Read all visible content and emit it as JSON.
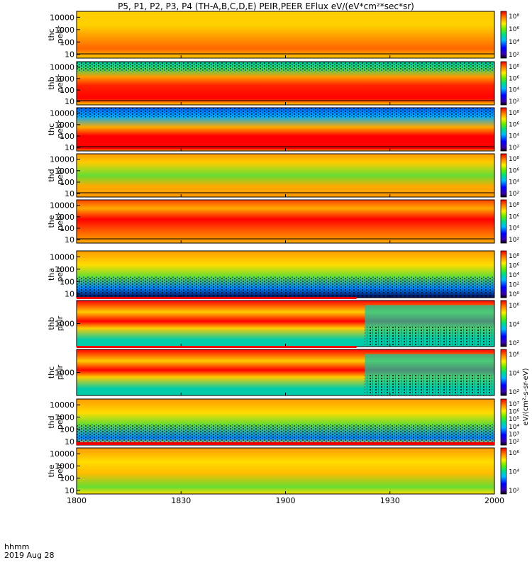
{
  "title": "P5, P1, P2, P3, P4 (TH-A,B,C,D,E) PEIR,PEER EFlux eV/(eV*cm²*sec*sr)",
  "footer": {
    "label_line1": "hhmm",
    "label_line2": "2019 Aug 28"
  },
  "colorbar_label": "eV/(cm²-s-sr-eV)",
  "chart_data": [
    {
      "type": "heatmap",
      "probe_label": "thc",
      "product_label": "peer",
      "ylabel": "thc peer",
      "yticks": [
        "10",
        "100",
        "1000",
        "10000"
      ],
      "yscale": "log",
      "ylim": [
        5,
        30000
      ],
      "xticks": [
        "1800",
        "1830",
        "1900",
        "1930",
        "2000"
      ],
      "colorbar_ticks": [
        "10⁸",
        "10⁶",
        "10⁴",
        "10²"
      ],
      "dominant_colors": [
        "#ffd000",
        "#ff8800",
        "#ff2000"
      ],
      "fill_levels": {
        "band_top": 0.55,
        "band_mid": 0.35
      }
    },
    {
      "type": "heatmap",
      "probe_label": "thb",
      "product_label": "peer",
      "ylabel": "thb peer",
      "yticks": [
        "10",
        "100",
        "1000",
        "10000"
      ],
      "yscale": "log",
      "ylim": [
        5,
        30000
      ],
      "xticks": [
        "1800",
        "1830",
        "1900",
        "1930",
        "2000"
      ],
      "colorbar_ticks": [
        "10⁸",
        "10⁶",
        "10⁴",
        "10²"
      ],
      "dominant_colors": [
        "#ff0000",
        "#ff9900",
        "#00cc99"
      ]
    },
    {
      "type": "heatmap",
      "probe_label": "thc",
      "product_label": "peer",
      "ylabel": "thc peer",
      "yticks": [
        "10",
        "100",
        "1000",
        "10000"
      ],
      "yscale": "log",
      "ylim": [
        5,
        30000
      ],
      "xticks": [
        "1800",
        "1830",
        "1900",
        "1930",
        "2000"
      ],
      "colorbar_ticks": [
        "10⁸",
        "10⁶",
        "10⁴",
        "10²"
      ],
      "dominant_colors": [
        "#ff0000",
        "#ffaa00",
        "#0066ff"
      ]
    },
    {
      "type": "heatmap",
      "probe_label": "thd",
      "product_label": "peer",
      "ylabel": "thd peer",
      "yticks": [
        "10",
        "100",
        "1000",
        "10000"
      ],
      "yscale": "log",
      "ylim": [
        5,
        30000
      ],
      "xticks": [
        "1800",
        "1830",
        "1900",
        "1930",
        "2000"
      ],
      "colorbar_ticks": [
        "10⁸",
        "10⁶",
        "10⁴",
        "10²"
      ],
      "dominant_colors": [
        "#ff9900",
        "#ffcc00",
        "#66dd33"
      ]
    },
    {
      "type": "heatmap",
      "probe_label": "the",
      "product_label": "peer",
      "ylabel": "the peer",
      "yticks": [
        "10",
        "100",
        "1000",
        "10000"
      ],
      "yscale": "log",
      "ylim": [
        5,
        30000
      ],
      "xticks": [
        "1800",
        "1830",
        "1900",
        "1930",
        "2000"
      ],
      "colorbar_ticks": [
        "10⁸",
        "10⁶",
        "10⁴",
        "10²"
      ],
      "dominant_colors": [
        "#ff0000",
        "#ff5500",
        "#ffaa00"
      ]
    },
    {
      "type": "heatmap",
      "probe_label": "tha",
      "product_label": "peir",
      "ylabel": "tha peir",
      "yticks": [
        "10",
        "100",
        "1000",
        "10000"
      ],
      "yscale": "log",
      "ylim": [
        5,
        30000
      ],
      "xticks": [
        "1800",
        "1830",
        "1900",
        "1930",
        "2000"
      ],
      "colorbar_ticks": [
        "10⁸",
        "10⁶",
        "10⁴",
        "10²",
        "10⁰"
      ],
      "dominant_colors": [
        "#ff9900",
        "#ffdd00",
        "#33cc66"
      ]
    },
    {
      "type": "heatmap",
      "probe_label": "thb",
      "product_label": "peir",
      "ylabel": "thb peir",
      "yticks": [
        "1000"
      ],
      "yscale": "log",
      "ylim": [
        5,
        30000
      ],
      "xticks": [
        "1800",
        "1830",
        "1900",
        "1930",
        "2000"
      ],
      "colorbar_ticks": [
        "10⁶",
        "10⁴",
        "10²"
      ],
      "dominant_colors": [
        "#ff0000",
        "#ffcc00",
        "#00ccaa"
      ]
    },
    {
      "type": "heatmap",
      "probe_label": "thc",
      "product_label": "peir",
      "ylabel": "thc peir",
      "yticks": [
        "1000"
      ],
      "yscale": "log",
      "ylim": [
        5,
        30000
      ],
      "xticks": [
        "1800",
        "1830",
        "1900",
        "1930",
        "2000"
      ],
      "colorbar_ticks": [
        "10⁶",
        "10⁴",
        "10²"
      ],
      "dominant_colors": [
        "#ff0000",
        "#ffcc00",
        "#00ccaa"
      ]
    },
    {
      "type": "heatmap",
      "probe_label": "thd",
      "product_label": "peir",
      "ylabel": "thd peir",
      "yticks": [
        "10",
        "100",
        "1000",
        "10000"
      ],
      "yscale": "log",
      "ylim": [
        5,
        30000
      ],
      "xticks": [
        "1800",
        "1830",
        "1900",
        "1930",
        "2000"
      ],
      "colorbar_ticks": [
        "10⁷",
        "10⁶",
        "10⁵",
        "10⁴",
        "10³",
        "10²"
      ],
      "dominant_colors": [
        "#ff9900",
        "#ffdd00",
        "#33cc66"
      ]
    },
    {
      "type": "heatmap",
      "probe_label": "the",
      "product_label": "peir",
      "ylabel": "the peir",
      "yticks": [
        "10",
        "100",
        "1000",
        "10000"
      ],
      "yscale": "log",
      "ylim": [
        5,
        30000
      ],
      "xticks": [
        "1800",
        "1830",
        "1900",
        "1930",
        "2000"
      ],
      "colorbar_ticks": [
        "10⁶",
        "10⁴",
        "10²"
      ],
      "dominant_colors": [
        "#ff9900",
        "#ffdd00",
        "#66dd33"
      ]
    }
  ]
}
